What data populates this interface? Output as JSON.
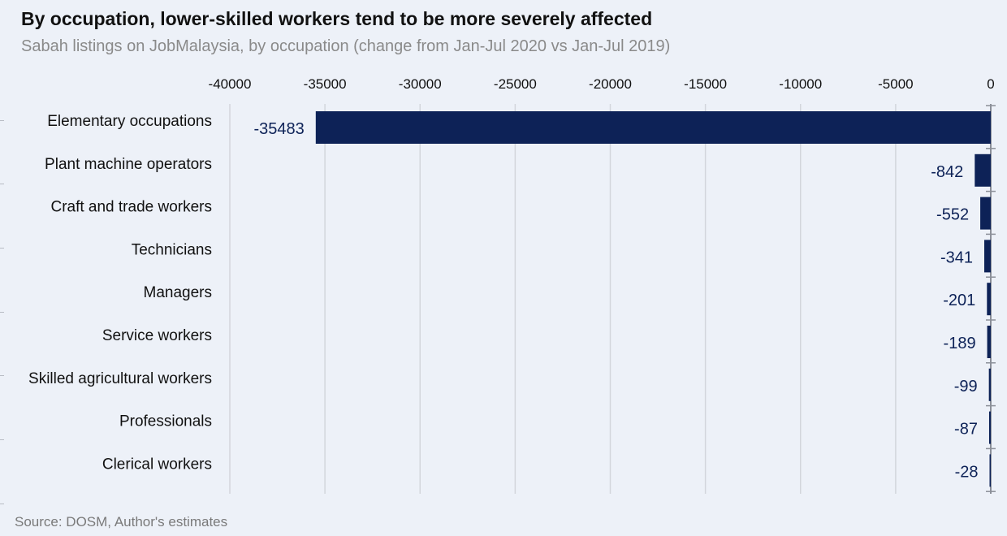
{
  "title": "By occupation, lower-skilled workers tend to be more severely affected",
  "subtitle": "Sabah listings on JobMalaysia, by occupation (change from Jan-Jul 2020 vs Jan-Jul 2019)",
  "source": "Source: DOSM, Author's estimates",
  "colors": {
    "bar": "#0d2257",
    "label": "#0d2257",
    "grid": "#d3d6dc",
    "axis": "#8c9099",
    "category_text": "#111111",
    "tick_text": "#111111"
  },
  "chart_data": {
    "type": "bar",
    "orientation": "horizontal",
    "categories": [
      "Elementary occupations",
      "Plant machine operators",
      "Craft and trade workers",
      "Technicians",
      "Managers",
      "Service workers",
      "Skilled agricultural workers",
      "Professionals",
      "Clerical workers"
    ],
    "values": [
      -35483,
      -842,
      -552,
      -341,
      -201,
      -189,
      -99,
      -87,
      -28
    ],
    "data_labels": [
      "-35483",
      "-842",
      "-552",
      "-341",
      "-201",
      "-189",
      "-99",
      "-87",
      "-28"
    ],
    "xlim": [
      -40000,
      0
    ],
    "xticks": [
      -40000,
      -35000,
      -30000,
      -25000,
      -20000,
      -15000,
      -10000,
      -5000,
      0
    ],
    "xtick_labels": [
      "-40000",
      "-35000",
      "-30000",
      "-25000",
      "-20000",
      "-15000",
      "-10000",
      "-5000",
      "0"
    ],
    "x_axis_position": "top",
    "grid": true,
    "legend": false
  }
}
